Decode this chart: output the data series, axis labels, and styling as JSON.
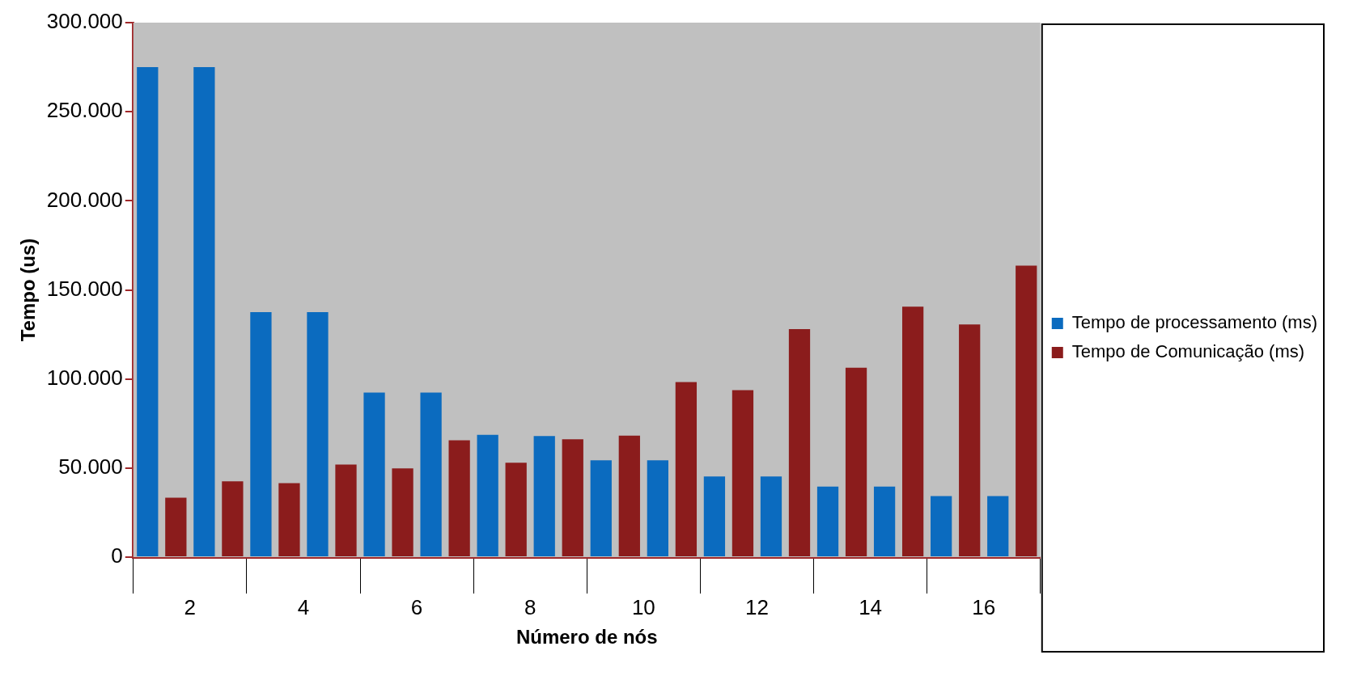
{
  "chart_data": {
    "type": "bar",
    "xlabel": "Número de nós",
    "ylabel": "Tempo (us)",
    "categories": [
      "2",
      "4",
      "6",
      "8",
      "10",
      "12",
      "14",
      "16"
    ],
    "series": [
      {
        "name": "Tempo de processamento (ms)",
        "color": "#0b6bbf",
        "values": [
          275000,
          137500,
          92400,
          68600,
          54300,
          45300,
          39600,
          34300
        ]
      },
      {
        "name": "Tempo de Comunicação (ms)",
        "color": "#8b1c1c",
        "values": [
          33400,
          41500,
          49800,
          53000,
          68200,
          93700,
          106300,
          130600
        ]
      },
      {
        "color": "#0b6bbf",
        "values": [
          275000,
          137500,
          92400,
          68000,
          54300,
          45300,
          39600,
          34300
        ]
      },
      {
        "color": "#8b1c1c",
        "values": [
          42600,
          52000,
          65600,
          66200,
          98300,
          128000,
          140600,
          163600
        ]
      }
    ],
    "ylim": [
      0,
      300000
    ],
    "yticks": [
      {
        "value": 0,
        "label": "0"
      },
      {
        "value": 50000,
        "label": "50.000"
      },
      {
        "value": 100000,
        "label": "100.000"
      },
      {
        "value": 150000,
        "label": "150.000"
      },
      {
        "value": 200000,
        "label": "200.000"
      },
      {
        "value": 250000,
        "label": "250.000"
      },
      {
        "value": 300000,
        "label": "300.000"
      }
    ],
    "grid": false,
    "legend": "right"
  }
}
